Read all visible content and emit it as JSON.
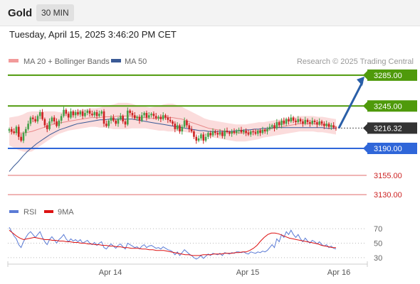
{
  "header": {
    "symbol": "Gold",
    "timeframe": "30 MIN",
    "datetime": "Tuesday, April 15, 2025 3:46:20 PM CET"
  },
  "legend": {
    "bollinger": "MA 20 + Bollinger Bands",
    "ma50": "MA 50",
    "copyright": "Research © 2025 Trading Central",
    "rsi": "RSI",
    "rsi_ma": "9MA"
  },
  "colors": {
    "up": "#45a049",
    "down": "#cc2222",
    "bands_fill": "#fbdcdc",
    "ma20": "#e88a8a",
    "ma50": "#3a5a96",
    "resistance": "#4f9a0b",
    "support": "#2f66d9",
    "minor_support": "#e06b6b",
    "current": "#333333",
    "arrow": "#2a5fa8",
    "rsi": "#5b7bd5",
    "rsi_ma": "#dd1111"
  },
  "chart_data": [
    {
      "type": "candlestick",
      "title": "Gold",
      "timeframe": "30 MIN",
      "x_ticks": [
        "Apr 14",
        "Apr 15",
        "Apr 16"
      ],
      "ylim": [
        3120,
        3295
      ],
      "levels": [
        {
          "label": "3285.00",
          "value": 3285.0,
          "kind": "resistance"
        },
        {
          "label": "3245.00",
          "value": 3245.0,
          "kind": "resistance"
        },
        {
          "label": "3216.32",
          "value": 3216.32,
          "kind": "current"
        },
        {
          "label": "3190.00",
          "value": 3190.0,
          "kind": "support"
        },
        {
          "label": "3155.00",
          "value": 3155.0,
          "kind": "minor-support"
        },
        {
          "label": "3130.00",
          "value": 3130.0,
          "kind": "minor-support"
        }
      ],
      "target_arrow": {
        "from": 3216.32,
        "to": 3285.0
      },
      "close": [
        3215,
        3212,
        3210,
        3218,
        3205,
        3200,
        3210,
        3215,
        3222,
        3230,
        3228,
        3225,
        3232,
        3237,
        3228,
        3220,
        3215,
        3225,
        3230,
        3225,
        3219,
        3226,
        3232,
        3240,
        3235,
        3230,
        3238,
        3233,
        3237,
        3234,
        3238,
        3232,
        3236,
        3239,
        3235,
        3233,
        3237,
        3232,
        3235,
        3238,
        3222,
        3219,
        3226,
        3230,
        3226,
        3222,
        3228,
        3232,
        3225,
        3221,
        3239,
        3236,
        3233,
        3229,
        3231,
        3226,
        3233,
        3236,
        3230,
        3233,
        3235,
        3232,
        3229,
        3231,
        3228,
        3233,
        3230,
        3227,
        3225,
        3222,
        3215,
        3220,
        3212,
        3218,
        3226,
        3220,
        3215,
        3212,
        3205,
        3200,
        3203,
        3208,
        3200,
        3205,
        3210,
        3207,
        3212,
        3210,
        3208,
        3211,
        3206,
        3213,
        3211,
        3209,
        3212,
        3210,
        3213,
        3214,
        3211,
        3213,
        3210,
        3208,
        3212,
        3211,
        3209,
        3213,
        3210,
        3214,
        3212,
        3215,
        3218,
        3220,
        3216,
        3224,
        3220,
        3226,
        3222,
        3228,
        3225,
        3230,
        3226,
        3224,
        3228,
        3225,
        3222,
        3227,
        3224,
        3222,
        3226,
        3224,
        3221,
        3225,
        3222,
        3219,
        3222,
        3218,
        3220,
        3217,
        3216
      ],
      "ma20": [
        3212,
        3211,
        3210,
        3210,
        3211,
        3212,
        3214,
        3216,
        3218,
        3220,
        3222,
        3223,
        3224,
        3225,
        3226,
        3227,
        3228,
        3229,
        3230,
        3230,
        3230,
        3231,
        3231,
        3231,
        3232,
        3232,
        3232,
        3232,
        3231,
        3230,
        3230,
        3229,
        3229,
        3229,
        3230,
        3230,
        3230,
        3229,
        3228,
        3226,
        3224,
        3222,
        3220,
        3218,
        3216,
        3215,
        3214,
        3213,
        3212,
        3211,
        3210,
        3210,
        3210,
        3211,
        3212,
        3213,
        3214,
        3215,
        3216,
        3217,
        3218,
        3219,
        3220,
        3221,
        3222,
        3222,
        3222,
        3222,
        3221,
        3221,
        3220,
        3219,
        3218
      ],
      "ma50": [
        3160,
        3167,
        3173,
        3180,
        3186,
        3191,
        3196,
        3200,
        3204,
        3208,
        3211,
        3214,
        3216,
        3218,
        3220,
        3222,
        3223,
        3224,
        3225,
        3226,
        3227,
        3227,
        3228,
        3228,
        3228,
        3228,
        3228,
        3228,
        3227,
        3226,
        3225,
        3224,
        3223,
        3222,
        3221,
        3220,
        3219,
        3218,
        3217,
        3216,
        3215,
        3214,
        3213,
        3213,
        3212,
        3212,
        3212,
        3212,
        3212,
        3212,
        3213,
        3213,
        3214,
        3214,
        3215,
        3215,
        3216,
        3216,
        3217,
        3217,
        3217,
        3217,
        3217,
        3217,
        3217,
        3217,
        3217,
        3217,
        3217,
        3217,
        3216,
        3216,
        3216
      ],
      "band_width": [
        18,
        20,
        22,
        24,
        26,
        26,
        24,
        22,
        20,
        18,
        16,
        14,
        13,
        12,
        12,
        12,
        12,
        12,
        12,
        12,
        13,
        14,
        15,
        16,
        17,
        17,
        17,
        16,
        15,
        14,
        14,
        14,
        15,
        16,
        17,
        18,
        18,
        17,
        16,
        15,
        14,
        13,
        12,
        11,
        11,
        11,
        11,
        11,
        11,
        11,
        11,
        11,
        11,
        11,
        11,
        11,
        10,
        10,
        10,
        10,
        10,
        10,
        10,
        10,
        10,
        10,
        10,
        10,
        10,
        10,
        10,
        10,
        10
      ]
    },
    {
      "type": "line",
      "title": "RSI",
      "ylim": [
        25,
        80
      ],
      "y_ticks": [
        70,
        50,
        30
      ],
      "series": [
        {
          "name": "RSI",
          "values": [
            72,
            66,
            60,
            56,
            48,
            44,
            52,
            58,
            63,
            66,
            62,
            58,
            62,
            66,
            58,
            52,
            48,
            55,
            59,
            55,
            50,
            55,
            58,
            62,
            56,
            52,
            56,
            53,
            55,
            52,
            55,
            50,
            52,
            54,
            50,
            48,
            51,
            47,
            50,
            52,
            44,
            42,
            46,
            49,
            46,
            43,
            47,
            49,
            45,
            42,
            50,
            48,
            46,
            44,
            45,
            42,
            46,
            48,
            44,
            46,
            47,
            45,
            43,
            44,
            42,
            45,
            43,
            41,
            40,
            38,
            34,
            38,
            33,
            37,
            41,
            38,
            35,
            33,
            30,
            28,
            30,
            33,
            29,
            32,
            35,
            33,
            36,
            35,
            34,
            36,
            33,
            37,
            36,
            35,
            37,
            36,
            38,
            38,
            37,
            38,
            36,
            35,
            38,
            37,
            36,
            38,
            37,
            39,
            38,
            40,
            44,
            48,
            44,
            56,
            52,
            62,
            58,
            66,
            62,
            68,
            62,
            58,
            62,
            56,
            52,
            57,
            53,
            50,
            54,
            52,
            49,
            52,
            48,
            46,
            48,
            44,
            46,
            43,
            42
          ]
        },
        {
          "name": "9MA",
          "values": [
            68,
            64,
            60,
            57,
            55,
            56,
            57,
            58,
            57,
            56,
            55,
            55,
            54,
            54,
            53,
            53,
            52,
            52,
            51,
            51,
            50,
            50,
            49,
            49,
            48,
            48,
            47,
            47,
            46,
            46,
            45,
            45,
            44,
            44,
            43,
            43,
            43,
            42,
            42,
            41,
            41,
            40,
            40,
            40,
            39,
            38,
            37,
            36,
            35,
            34,
            34,
            33,
            33,
            33,
            34,
            34,
            34,
            35,
            35,
            35,
            36,
            36,
            36,
            37,
            37,
            38,
            38,
            40,
            43,
            47,
            53,
            58,
            62,
            64,
            64,
            63,
            61,
            59,
            57,
            56,
            55,
            54,
            53,
            52,
            51,
            50,
            49,
            47,
            46,
            45,
            44,
            44
          ]
        }
      ]
    }
  ]
}
